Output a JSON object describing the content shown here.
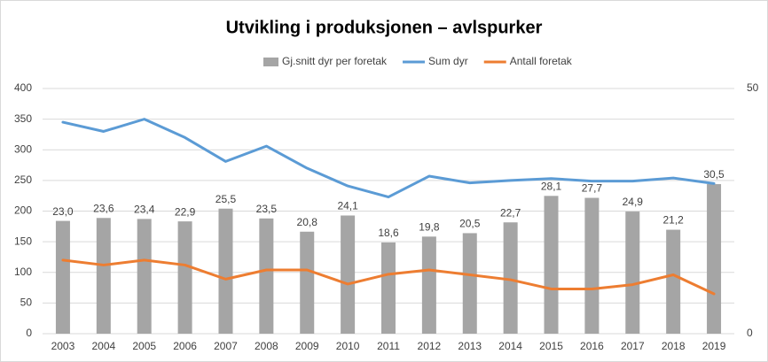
{
  "chart_data": {
    "type": "bar",
    "title": "Utvikling i produksjonen – avlspurker",
    "categories": [
      "2003",
      "2004",
      "2005",
      "2006",
      "2007",
      "2008",
      "2009",
      "2010",
      "2011",
      "2012",
      "2013",
      "2014",
      "2015",
      "2016",
      "2017",
      "2018",
      "2019"
    ],
    "series": [
      {
        "name": "Gj.snitt dyr per foretak",
        "type": "bar",
        "axis": "y2",
        "color": "#a5a5a5",
        "values": [
          23.0,
          23.6,
          23.4,
          22.9,
          25.5,
          23.5,
          20.8,
          24.1,
          18.6,
          19.8,
          20.5,
          22.7,
          28.1,
          27.7,
          24.9,
          21.2,
          30.5
        ],
        "value_labels": [
          "23,0",
          "23,6",
          "23,4",
          "22,9",
          "25,5",
          "23,5",
          "20,8",
          "24,1",
          "18,6",
          "19,8",
          "20,5",
          "22,7",
          "28,1",
          "27,7",
          "24,9",
          "21,2",
          "30,5"
        ]
      },
      {
        "name": "Sum dyr",
        "type": "line",
        "color": "#5b9bd5",
        "values": [
          345,
          330,
          350,
          320,
          281,
          306,
          270,
          241,
          223,
          257,
          246,
          250,
          253,
          249,
          249,
          254,
          245
        ]
      },
      {
        "name": "Antall foretak",
        "type": "line",
        "color": "#ed7d31",
        "values": [
          120,
          112,
          120,
          112,
          89,
          104,
          104,
          81,
          97,
          104,
          96,
          88,
          73,
          73,
          80,
          96,
          65
        ]
      }
    ],
    "ylim": [
      0,
      400
    ],
    "yticks": [
      0,
      50,
      100,
      150,
      200,
      250,
      300,
      350,
      400
    ],
    "y2lim": [
      0,
      50
    ],
    "y2ticks": [
      0,
      50
    ],
    "grid": true,
    "legend": "top"
  }
}
